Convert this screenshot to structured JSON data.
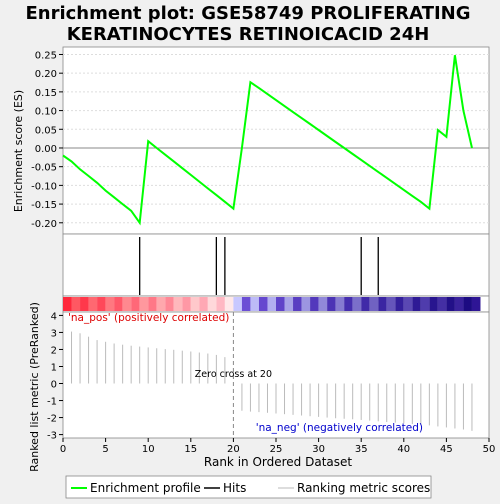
{
  "chart_data": {
    "type": "line",
    "title_line1": "Enrichment plot: GSE58749 PROLIFERATING",
    "title_line2": "KERATINOCYTES RETINOICACID 24H",
    "es_panel": {
      "ylabel": "Enrichment score (ES)",
      "ylim": [
        -0.23,
        0.27
      ],
      "yticks": [
        "0.25",
        "0.20",
        "0.15",
        "0.10",
        "0.05",
        "0.00",
        "-0.05",
        "-0.10",
        "-0.15",
        "-0.20"
      ],
      "ytick_values": [
        0.25,
        0.2,
        0.15,
        0.1,
        0.05,
        0.0,
        -0.05,
        -0.1,
        -0.15,
        -0.2
      ],
      "series": [
        {
          "name": "Enrichment profile",
          "color": "#00ff00",
          "x": [
            0,
            1,
            2,
            3,
            4,
            5,
            6,
            7,
            8,
            9,
            10,
            11,
            12,
            13,
            14,
            15,
            16,
            17,
            18,
            19,
            20,
            21,
            22,
            23,
            24,
            25,
            26,
            27,
            28,
            29,
            30,
            31,
            32,
            33,
            34,
            35,
            36,
            37,
            38,
            39,
            40,
            41,
            42,
            43,
            44,
            45,
            46,
            47,
            48
          ],
          "y": [
            -0.02,
            -0.036,
            -0.057,
            -0.075,
            -0.093,
            -0.114,
            -0.132,
            -0.15,
            -0.168,
            -0.2,
            0.018,
            0.0,
            -0.018,
            -0.036,
            -0.054,
            -0.072,
            -0.09,
            -0.108,
            -0.126,
            -0.144,
            -0.162,
            0.0,
            0.176,
            0.16,
            0.144,
            0.128,
            0.112,
            0.096,
            0.08,
            0.064,
            0.048,
            0.032,
            0.016,
            0.0,
            -0.016,
            -0.032,
            -0.048,
            -0.064,
            -0.08,
            -0.096,
            -0.112,
            -0.128,
            -0.144,
            -0.162,
            0.048,
            0.03,
            0.248,
            0.1,
            0.0
          ]
        }
      ]
    },
    "hits": {
      "name": "Hits",
      "x": [
        9,
        18,
        19,
        35,
        37
      ]
    },
    "color_bar": {
      "pos_label": "'na_pos' (positively correlated)",
      "neg_label": "'na_neg' (negatively correlated)"
    },
    "rank_panel": {
      "ylabel": "Ranked list metric (PreRanked)",
      "ylim": [
        -3.2,
        4.2
      ],
      "yticks": [
        "4",
        "3",
        "2",
        "1",
        "0",
        "-1",
        "-2",
        "-3"
      ],
      "ytick_values": [
        4,
        3,
        2,
        1,
        0,
        -1,
        -2,
        -3
      ],
      "series_name": "Ranking metric scores",
      "x": [
        1,
        2,
        3,
        4,
        5,
        6,
        7,
        8,
        9,
        10,
        11,
        12,
        13,
        14,
        15,
        16,
        17,
        18,
        19,
        21,
        22,
        23,
        24,
        25,
        26,
        27,
        28,
        29,
        30,
        31,
        32,
        33,
        34,
        35,
        36,
        37,
        38,
        39,
        40,
        41,
        42,
        43,
        44,
        45,
        46,
        47,
        48
      ],
      "values": [
        3.05,
        2.95,
        2.75,
        2.55,
        2.45,
        2.35,
        2.28,
        2.22,
        2.17,
        2.12,
        2.07,
        2.02,
        1.98,
        1.93,
        1.88,
        1.82,
        1.76,
        1.68,
        1.55,
        -1.6,
        -1.65,
        -1.68,
        -1.72,
        -1.76,
        -1.8,
        -1.84,
        -1.88,
        -1.92,
        -1.96,
        -2.0,
        -2.04,
        -2.07,
        -2.1,
        -2.14,
        -2.18,
        -2.22,
        -2.26,
        -2.3,
        -2.34,
        -2.38,
        -2.42,
        -2.46,
        -2.52,
        -2.58,
        -2.64,
        -2.7,
        -2.78
      ],
      "zero_cross_label": "Zero cross at 20",
      "zero_cross_x": 20
    },
    "xaxis": {
      "xlabel": "Rank in Ordered Dataset",
      "xlim": [
        0,
        50
      ],
      "xticks": [
        "0",
        "5",
        "10",
        "15",
        "20",
        "25",
        "30",
        "35",
        "40",
        "45",
        "50"
      ],
      "xtick_values": [
        0,
        5,
        10,
        15,
        20,
        25,
        30,
        35,
        40,
        45,
        50
      ]
    },
    "legend": {
      "placement": "bottom",
      "items": [
        "Enrichment profile",
        "Hits",
        "Ranking metric scores"
      ]
    }
  }
}
